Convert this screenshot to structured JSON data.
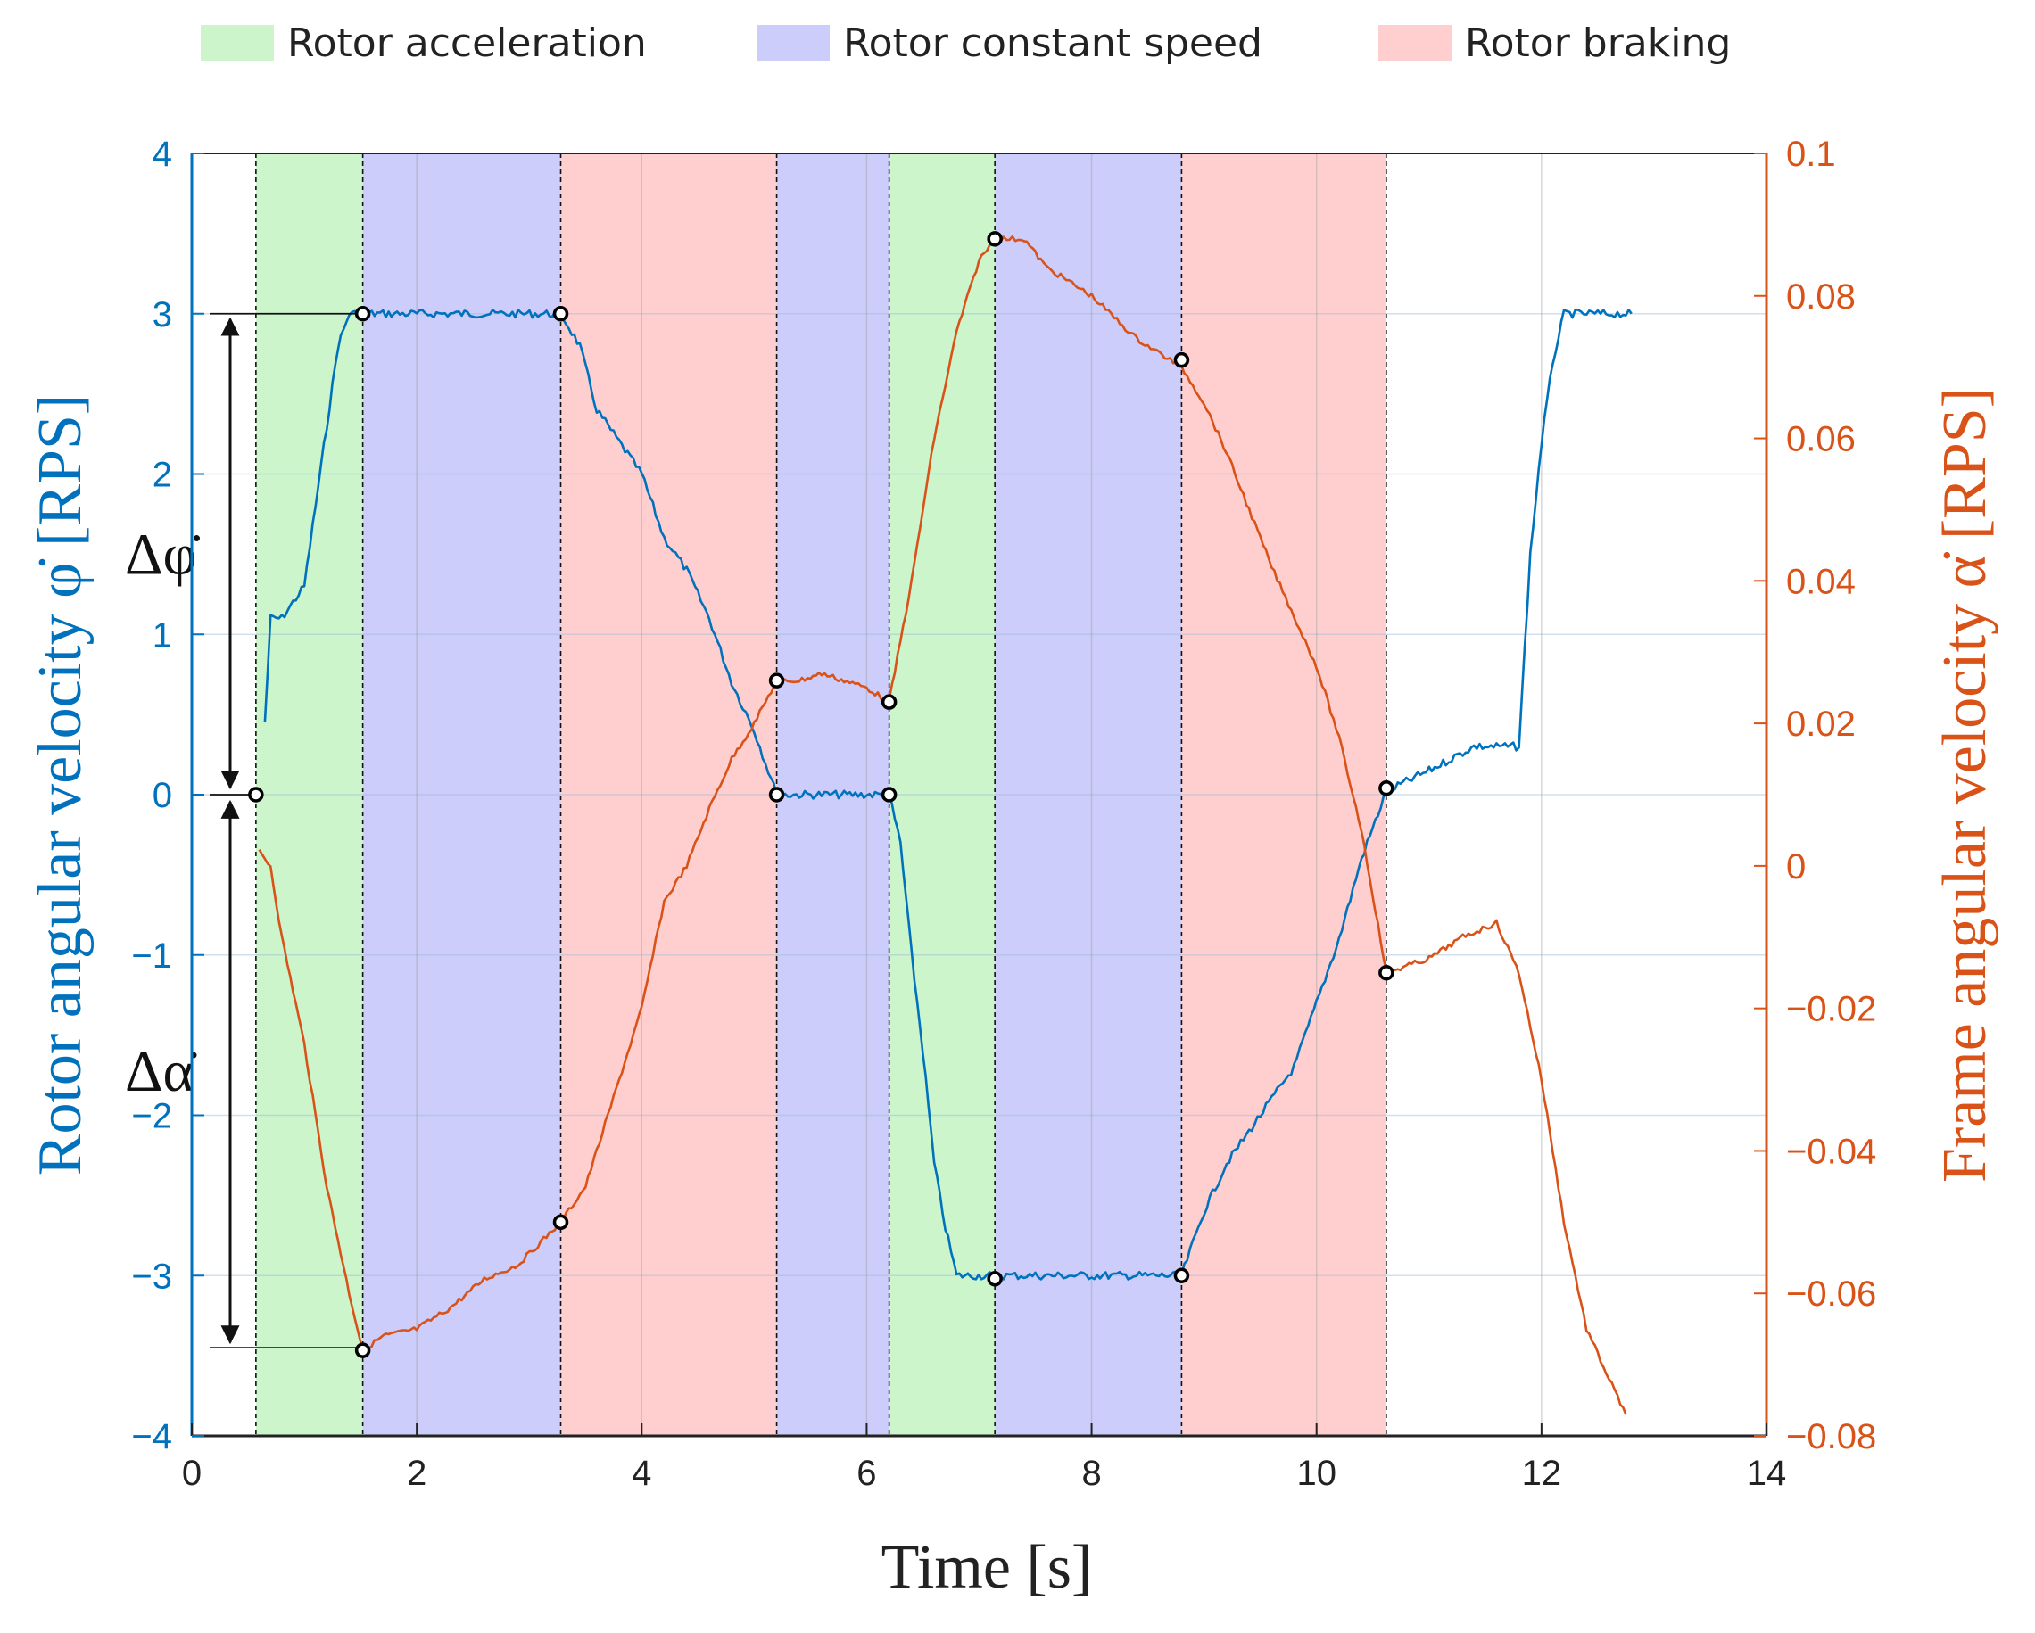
{
  "chart_data": {
    "type": "line",
    "xlabel": "Time [s]",
    "ylabel_left": "Rotor angular velocity φ̇ [RPS]",
    "ylabel_right": "Frame angular velocity α̇ [RPS]",
    "xlim": [
      0,
      14
    ],
    "ylim_left": [
      -4,
      4
    ],
    "ylim_right": [
      -0.08,
      0.1
    ],
    "x_ticks": [
      "0",
      "2",
      "4",
      "6",
      "8",
      "10",
      "12",
      "14"
    ],
    "y_ticks_left": [
      "4",
      "3",
      "2",
      "1",
      "0",
      "−1",
      "−2",
      "−3",
      "−4"
    ],
    "y_ticks_right": [
      "0.1",
      "0.08",
      "0.06",
      "0.04",
      "0.02",
      "0",
      "−0.02",
      "−0.04",
      "−0.06",
      "−0.08"
    ],
    "grid": true,
    "legend": {
      "placement": "top",
      "entries": [
        {
          "label": "Rotor acceleration",
          "color": "#ccf5cc"
        },
        {
          "label": "Rotor constant speed",
          "color": "#cccdfa"
        },
        {
          "label": "Rotor braking",
          "color": "#ffcfcf"
        }
      ]
    },
    "phases": [
      {
        "type": "acceleration",
        "start": 0.57,
        "end": 1.52
      },
      {
        "type": "constant",
        "start": 1.52,
        "end": 3.28
      },
      {
        "type": "braking",
        "start": 3.28,
        "end": 5.2
      },
      {
        "type": "constant",
        "start": 5.2,
        "end": 6.2
      },
      {
        "type": "acceleration",
        "start": 6.2,
        "end": 7.14
      },
      {
        "type": "constant",
        "start": 7.14,
        "end": 8.8
      },
      {
        "type": "braking",
        "start": 8.8,
        "end": 10.62
      }
    ],
    "series": [
      {
        "axis": "left",
        "color": "#0072bd",
        "x": [
          0.65,
          0.7,
          0.8,
          1.0,
          1.2,
          1.3,
          1.4,
          1.5,
          1.8,
          2.3,
          2.8,
          3.28,
          3.45,
          3.6,
          3.8,
          4.0,
          4.2,
          4.4,
          4.6,
          4.8,
          5.0,
          5.2,
          6.2,
          6.3,
          6.4,
          6.5,
          6.6,
          6.7,
          6.8,
          6.9,
          7.14,
          7.5,
          8.0,
          8.8,
          9.0,
          9.2,
          9.5,
          9.8,
          10.0,
          10.2,
          10.4,
          10.62,
          11.0,
          11.4,
          11.8,
          11.9,
          12.0,
          12.1,
          12.2,
          12.5,
          12.8
        ],
        "y": [
          0.45,
          1.1,
          1.1,
          1.3,
          2.3,
          2.8,
          3.0,
          3.0,
          3.0,
          3.0,
          3.0,
          3.0,
          2.8,
          2.4,
          2.2,
          2.0,
          1.6,
          1.4,
          1.1,
          0.7,
          0.4,
          0.0,
          0.0,
          -0.3,
          -1.0,
          -1.6,
          -2.3,
          -2.7,
          -3.0,
          -3.0,
          -3.0,
          -3.0,
          -3.0,
          -3.0,
          -2.6,
          -2.3,
          -2.0,
          -1.7,
          -1.3,
          -0.9,
          -0.4,
          0.02,
          0.15,
          0.3,
          0.3,
          1.5,
          2.2,
          2.7,
          3.0,
          3.0,
          3.0
        ]
      },
      {
        "axis": "right",
        "color": "#d95319",
        "x": [
          0.6,
          0.7,
          0.8,
          1.0,
          1.2,
          1.4,
          1.52,
          1.7,
          2.0,
          2.3,
          2.6,
          2.9,
          3.28,
          3.5,
          3.8,
          4.0,
          4.2,
          4.4,
          4.6,
          4.8,
          5.0,
          5.2,
          5.4,
          5.6,
          5.8,
          6.0,
          6.2,
          6.4,
          6.6,
          6.8,
          7.0,
          7.14,
          7.4,
          7.6,
          8.0,
          8.4,
          8.8,
          9.0,
          9.2,
          9.4,
          9.6,
          9.8,
          10.0,
          10.2,
          10.4,
          10.62,
          11.0,
          11.3,
          11.6,
          11.8,
          12.0,
          12.2,
          12.4,
          12.6,
          12.75
        ],
        "y": [
          0.002,
          0.0,
          -0.01,
          -0.025,
          -0.045,
          -0.06,
          -0.068,
          -0.066,
          -0.065,
          -0.062,
          -0.058,
          -0.056,
          -0.05,
          -0.045,
          -0.03,
          -0.02,
          -0.005,
          0.0,
          0.008,
          0.015,
          0.02,
          0.026,
          0.026,
          0.027,
          0.026,
          0.025,
          0.023,
          0.04,
          0.06,
          0.075,
          0.085,
          0.088,
          0.088,
          0.084,
          0.08,
          0.074,
          0.07,
          0.065,
          0.058,
          0.05,
          0.042,
          0.035,
          0.028,
          0.018,
          0.005,
          -0.015,
          -0.013,
          -0.01,
          -0.008,
          -0.015,
          -0.03,
          -0.05,
          -0.065,
          -0.072,
          -0.077
        ]
      }
    ],
    "markers": {
      "left": [
        [
          0.57,
          0
        ],
        [
          1.52,
          3.0
        ],
        [
          3.28,
          3.0
        ],
        [
          5.2,
          0.0
        ],
        [
          6.2,
          0.0
        ],
        [
          7.14,
          -3.02
        ],
        [
          8.8,
          -3.0
        ],
        [
          10.62,
          0.04
        ]
      ],
      "right": [
        [
          1.52,
          -0.068
        ],
        [
          3.28,
          -0.05
        ],
        [
          5.2,
          0.026
        ],
        [
          6.2,
          0.023
        ],
        [
          7.14,
          0.088
        ],
        [
          8.8,
          0.071
        ],
        [
          10.62,
          -0.015
        ]
      ]
    },
    "annotations": [
      {
        "label": "Δφ̇",
        "from": 0,
        "to": 3,
        "axis": "left"
      },
      {
        "label": "Δα̇",
        "from": 0,
        "to": -3.45,
        "axis": "left"
      }
    ]
  }
}
